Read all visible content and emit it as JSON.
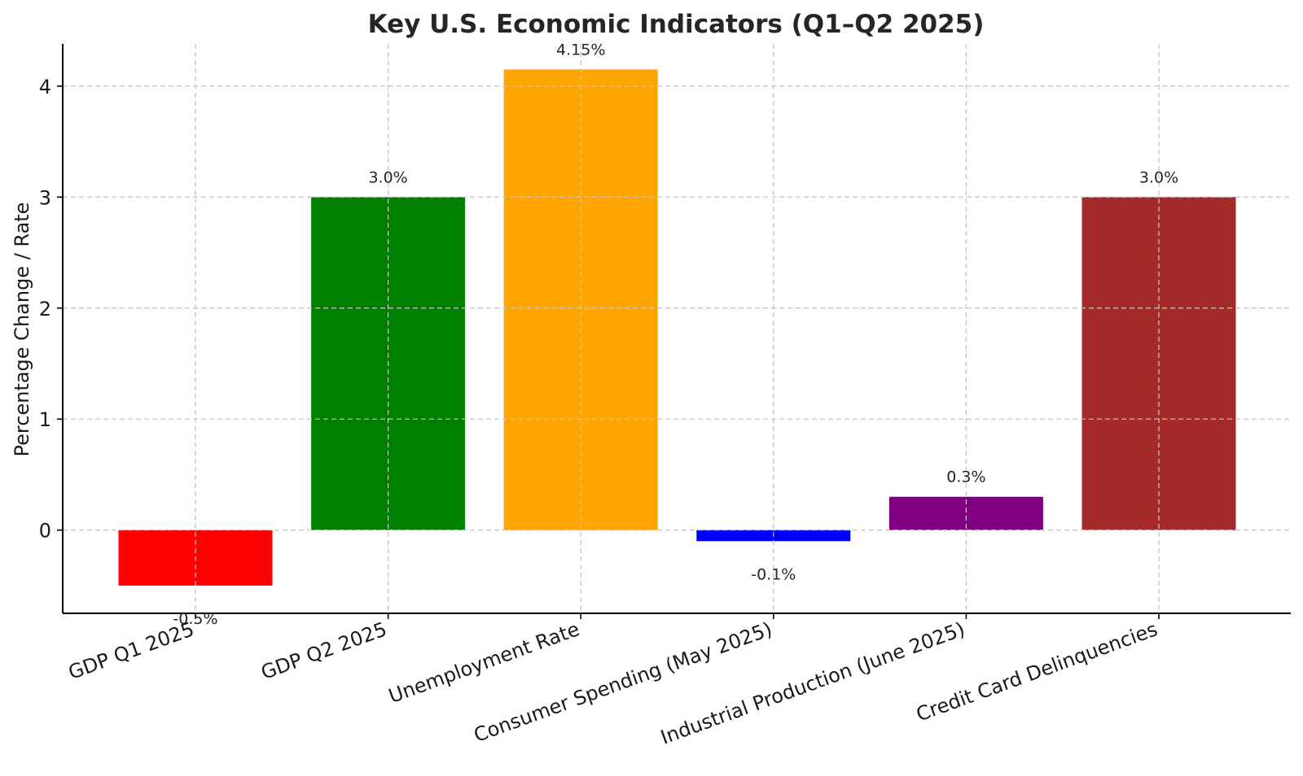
{
  "chart_data": {
    "type": "bar",
    "title": "Key U.S. Economic Indicators (Q1–Q2 2025)",
    "xlabel": "",
    "ylabel": "Percentage Change / Rate",
    "ylim": [
      -0.75,
      4.38
    ],
    "yticks": [
      0,
      1,
      2,
      3,
      4
    ],
    "grid": true,
    "categories": [
      "GDP Q1 2025",
      "GDP Q2 2025",
      "Unemployment Rate",
      "Consumer Spending (May 2025)",
      "Industrial Production (June 2025)",
      "Credit Card Delinquencies"
    ],
    "values": [
      -0.5,
      3.0,
      4.15,
      -0.1,
      0.3,
      3.0
    ],
    "value_labels": [
      "-0.5%",
      "3.0%",
      "4.15%",
      "-0.1%",
      "0.3%",
      "3.0%"
    ],
    "colors": [
      "#ff0000",
      "#008000",
      "#ffa500",
      "#0000ff",
      "#800080",
      "#a52a2a"
    ]
  }
}
